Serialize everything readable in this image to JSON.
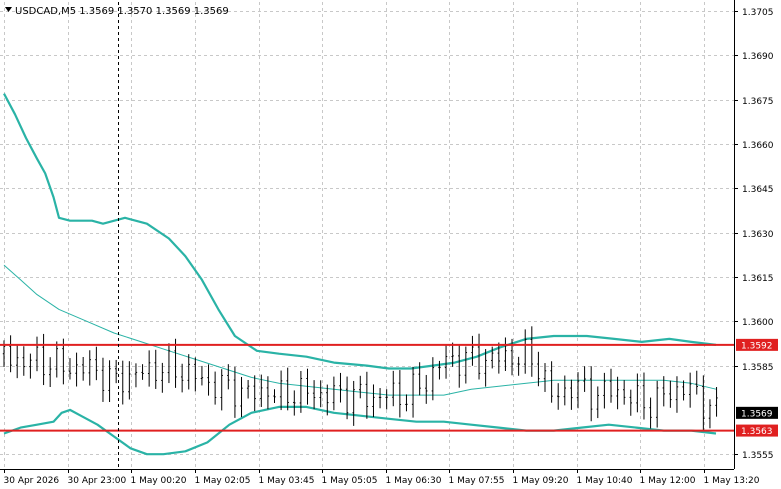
{
  "window": {
    "symbol_info": "USDCAD,M5  1.3569 1.3570 1.3569 1.3569"
  },
  "colors": {
    "background": "#ffffff",
    "grid": "#c8c8c8",
    "axis": "#000000",
    "text": "#000000",
    "bars": "#000000",
    "bollinger_band": "#2ab3a6",
    "level_line": "#e02020",
    "level_label_bg": "#e02020",
    "price_label_bg": "#000000",
    "label_text": "#ffffff"
  },
  "chart_data": {
    "type": "line",
    "title": "USDCAD,M5  1.3569 1.3570 1.3569 1.3569",
    "xlabel": "",
    "ylabel": "",
    "ylim": [
      1.355,
      1.3708
    ],
    "grid": true,
    "y_ticks": [
      1.3705,
      1.369,
      1.3675,
      1.366,
      1.3645,
      1.363,
      1.3615,
      1.36,
      1.3585,
      1.3555
    ],
    "x_ticks": [
      "30 Apr 2026",
      "30 Apr 23:00",
      "1 May 00:20",
      "1 May 02:05",
      "1 May 03:45",
      "1 May 05:05",
      "1 May 06:30",
      "1 May 07:55",
      "1 May 09:20",
      "1 May 10:40",
      "1 May 12:00",
      "1 May 13:20"
    ],
    "n_bars": 260,
    "current_price": "1.3569",
    "crosshair_at_tick": "30 Apr 23:00",
    "levels": [
      {
        "value": 1.3592,
        "label": "1.3592"
      },
      {
        "value": 1.3563,
        "label": "1.3563"
      }
    ],
    "series": [
      {
        "role": "upper",
        "points": [
          [
            0,
            1.3677
          ],
          [
            4,
            1.367
          ],
          [
            8,
            1.3662
          ],
          [
            12,
            1.3655
          ],
          [
            15,
            1.365
          ],
          [
            18,
            1.3642
          ],
          [
            20,
            1.3635
          ],
          [
            24,
            1.3634
          ],
          [
            32,
            1.3634
          ],
          [
            36,
            1.3633
          ],
          [
            44,
            1.3635
          ],
          [
            52,
            1.3633
          ],
          [
            60,
            1.3628
          ],
          [
            66,
            1.3622
          ],
          [
            72,
            1.3614
          ],
          [
            78,
            1.3604
          ],
          [
            84,
            1.3595
          ],
          [
            92,
            1.359
          ],
          [
            100,
            1.3589
          ],
          [
            110,
            1.3588
          ],
          [
            120,
            1.3586
          ],
          [
            132,
            1.3585
          ],
          [
            140,
            1.3584
          ],
          [
            148,
            1.3584
          ],
          [
            156,
            1.3585
          ],
          [
            164,
            1.3586
          ],
          [
            172,
            1.3588
          ],
          [
            180,
            1.3591
          ],
          [
            190,
            1.3594
          ],
          [
            200,
            1.3595
          ],
          [
            212,
            1.3595
          ],
          [
            222,
            1.3594
          ],
          [
            232,
            1.3593
          ],
          [
            242,
            1.3594
          ],
          [
            250,
            1.3593
          ],
          [
            259,
            1.3592
          ]
        ]
      },
      {
        "role": "middle",
        "points": [
          [
            0,
            1.3619
          ],
          [
            6,
            1.3614
          ],
          [
            12,
            1.3609
          ],
          [
            20,
            1.3604
          ],
          [
            30,
            1.36
          ],
          [
            40,
            1.3596
          ],
          [
            50,
            1.3593
          ],
          [
            60,
            1.359
          ],
          [
            70,
            1.3587
          ],
          [
            80,
            1.3584
          ],
          [
            90,
            1.3581
          ],
          [
            100,
            1.3579
          ],
          [
            110,
            1.3578
          ],
          [
            120,
            1.3577
          ],
          [
            130,
            1.3576
          ],
          [
            140,
            1.3575
          ],
          [
            150,
            1.3575
          ],
          [
            160,
            1.3575
          ],
          [
            170,
            1.3577
          ],
          [
            180,
            1.3578
          ],
          [
            190,
            1.3579
          ],
          [
            200,
            1.358
          ],
          [
            210,
            1.358
          ],
          [
            220,
            1.358
          ],
          [
            230,
            1.358
          ],
          [
            240,
            1.358
          ],
          [
            250,
            1.3579
          ],
          [
            259,
            1.3577
          ]
        ]
      },
      {
        "role": "lower",
        "points": [
          [
            0,
            1.3562
          ],
          [
            6,
            1.3564
          ],
          [
            12,
            1.3565
          ],
          [
            18,
            1.3566
          ],
          [
            21,
            1.3569
          ],
          [
            24,
            1.357
          ],
          [
            28,
            1.3568
          ],
          [
            34,
            1.3565
          ],
          [
            40,
            1.3561
          ],
          [
            46,
            1.3557
          ],
          [
            52,
            1.3555
          ],
          [
            58,
            1.3555
          ],
          [
            66,
            1.3556
          ],
          [
            74,
            1.3559
          ],
          [
            82,
            1.3565
          ],
          [
            90,
            1.3569
          ],
          [
            100,
            1.3571
          ],
          [
            110,
            1.3571
          ],
          [
            120,
            1.3569
          ],
          [
            130,
            1.3568
          ],
          [
            140,
            1.3567
          ],
          [
            150,
            1.3566
          ],
          [
            160,
            1.3566
          ],
          [
            170,
            1.3565
          ],
          [
            180,
            1.3564
          ],
          [
            190,
            1.3563
          ],
          [
            200,
            1.3563
          ],
          [
            210,
            1.3564
          ],
          [
            220,
            1.3565
          ],
          [
            230,
            1.3564
          ],
          [
            240,
            1.3563
          ],
          [
            250,
            1.3563
          ],
          [
            259,
            1.3562
          ]
        ]
      },
      {
        "role": "price",
        "points": [
          [
            0,
            1.3589
          ],
          [
            4,
            1.3587
          ],
          [
            8,
            1.3586
          ],
          [
            12,
            1.3587
          ],
          [
            16,
            1.3586
          ],
          [
            20,
            1.3585
          ],
          [
            26,
            1.3584
          ],
          [
            32,
            1.3584
          ],
          [
            36,
            1.3582
          ],
          [
            40,
            1.3579
          ],
          [
            44,
            1.3581
          ],
          [
            48,
            1.3582
          ],
          [
            52,
            1.3583
          ],
          [
            56,
            1.3584
          ],
          [
            60,
            1.3584
          ],
          [
            66,
            1.3583
          ],
          [
            72,
            1.358
          ],
          [
            78,
            1.3578
          ],
          [
            84,
            1.3577
          ],
          [
            90,
            1.3575
          ],
          [
            96,
            1.3577
          ],
          [
            100,
            1.3574
          ],
          [
            104,
            1.3576
          ],
          [
            110,
            1.3576
          ],
          [
            116,
            1.3575
          ],
          [
            122,
            1.3575
          ],
          [
            128,
            1.3575
          ],
          [
            134,
            1.3574
          ],
          [
            140,
            1.3575
          ],
          [
            146,
            1.3575
          ],
          [
            150,
            1.3577
          ],
          [
            154,
            1.358
          ],
          [
            158,
            1.3585
          ],
          [
            162,
            1.3587
          ],
          [
            168,
            1.3587
          ],
          [
            176,
            1.3587
          ],
          [
            184,
            1.3588
          ],
          [
            190,
            1.3588
          ],
          [
            196,
            1.3584
          ],
          [
            198,
            1.3574
          ],
          [
            202,
            1.3575
          ],
          [
            206,
            1.3578
          ],
          [
            210,
            1.3577
          ],
          [
            216,
            1.3575
          ],
          [
            222,
            1.3577
          ],
          [
            228,
            1.3574
          ],
          [
            234,
            1.3572
          ],
          [
            238,
            1.3573
          ],
          [
            242,
            1.3576
          ],
          [
            246,
            1.3577
          ],
          [
            250,
            1.3577
          ],
          [
            254,
            1.3573
          ],
          [
            257,
            1.3571
          ],
          [
            259,
            1.3569
          ]
        ]
      }
    ]
  }
}
